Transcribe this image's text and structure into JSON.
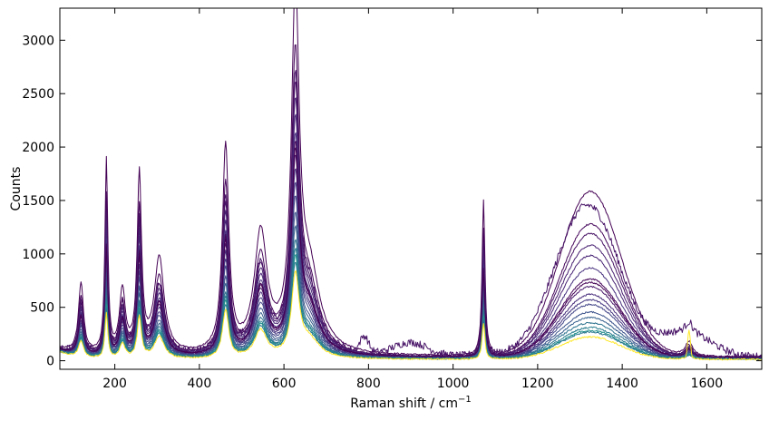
{
  "chart_data": {
    "type": "line",
    "title": "",
    "xlabel": "Raman shift / cm",
    "xlabel_superscript": "−1",
    "ylabel": "Counts",
    "xlim": [
      70,
      1730
    ],
    "ylim": [
      -80,
      3300
    ],
    "xticks": [
      200,
      400,
      600,
      800,
      1000,
      1200,
      1400,
      1600
    ],
    "yticks": [
      0,
      500,
      1000,
      1500,
      2000,
      2500,
      3000
    ],
    "grid": false,
    "legend": "none",
    "colormap": "viridis",
    "peaks": [
      {
        "center": 120,
        "width": 7,
        "shape": "lorentz",
        "base_height": 380
      },
      {
        "center": 180,
        "width": 4,
        "shape": "lorentz",
        "base_height": 1050
      },
      {
        "center": 218,
        "width": 8,
        "shape": "lorentz",
        "base_height": 340
      },
      {
        "center": 258,
        "width": 6,
        "shape": "lorentz",
        "base_height": 960
      },
      {
        "center": 305,
        "width": 14,
        "shape": "lorentz",
        "base_height": 520
      },
      {
        "center": 462,
        "width": 9,
        "shape": "lorentz",
        "base_height": 1120
      },
      {
        "center": 545,
        "width": 18,
        "shape": "lorentz",
        "base_height": 640
      },
      {
        "center": 627,
        "width": 11,
        "shape": "lorentz",
        "base_height": 1850
      },
      {
        "center": 660,
        "width": 30,
        "shape": "lorentz",
        "base_height": 420
      },
      {
        "center": 1072,
        "width": 4,
        "shape": "lorentz",
        "base_height": 850
      },
      {
        "center": 1325,
        "width": 72,
        "shape": "gauss",
        "base_height": 700
      },
      {
        "center": 1558,
        "width": 10,
        "shape": "lorentz",
        "base_height": 80
      }
    ],
    "series": [
      {
        "color": "#440154",
        "scale": 1.72,
        "broad": 2.2,
        "baseline": 40
      },
      {
        "color": "#481467",
        "scale": 1.3,
        "broad": 1.9,
        "baseline": 35,
        "noisy": true
      },
      {
        "color": "#46085c",
        "scale": 1.42,
        "broad": 1.78,
        "baseline": 30
      },
      {
        "color": "#471365",
        "scale": 1.25,
        "broad": 1.65,
        "baseline": 32
      },
      {
        "color": "#482071",
        "scale": 1.18,
        "broad": 1.5,
        "baseline": 28
      },
      {
        "color": "#482475",
        "scale": 1.1,
        "broad": 1.36,
        "baseline": 30
      },
      {
        "color": "#46307e",
        "scale": 1.02,
        "broad": 1.2,
        "baseline": 25
      },
      {
        "color": "#450559",
        "scale": 0.98,
        "broad": 1.05,
        "baseline": 28
      },
      {
        "color": "#48186a",
        "scale": 0.92,
        "broad": 0.95,
        "baseline": 26
      },
      {
        "color": "#472d7b",
        "scale": 0.86,
        "broad": 0.85,
        "baseline": 24
      },
      {
        "color": "#453781",
        "scale": 0.8,
        "broad": 0.78,
        "baseline": 22
      },
      {
        "color": "#414487",
        "scale": 0.74,
        "broad": 0.72,
        "baseline": 20
      },
      {
        "color": "#3b528b",
        "scale": 0.66,
        "broad": 0.62,
        "baseline": 20
      },
      {
        "color": "#355f8d",
        "scale": 0.6,
        "broad": 0.55,
        "baseline": 18
      },
      {
        "color": "#2c728e",
        "scale": 0.54,
        "broad": 0.48,
        "baseline": 18
      },
      {
        "color": "#287c8e",
        "scale": 0.5,
        "broad": 0.42,
        "baseline": 16
      },
      {
        "color": "#21918c",
        "scale": 0.47,
        "broad": 0.38,
        "baseline": 16
      },
      {
        "color": "#2a788e",
        "scale": 0.44,
        "broad": 0.36,
        "baseline": 15
      },
      {
        "color": "#440154",
        "scale": 0.95,
        "broad": 1.0,
        "baseline": 30
      },
      {
        "color": "#fde725",
        "scale": 0.4,
        "broad": 0.3,
        "baseline": 12,
        "spike": true
      }
    ]
  }
}
